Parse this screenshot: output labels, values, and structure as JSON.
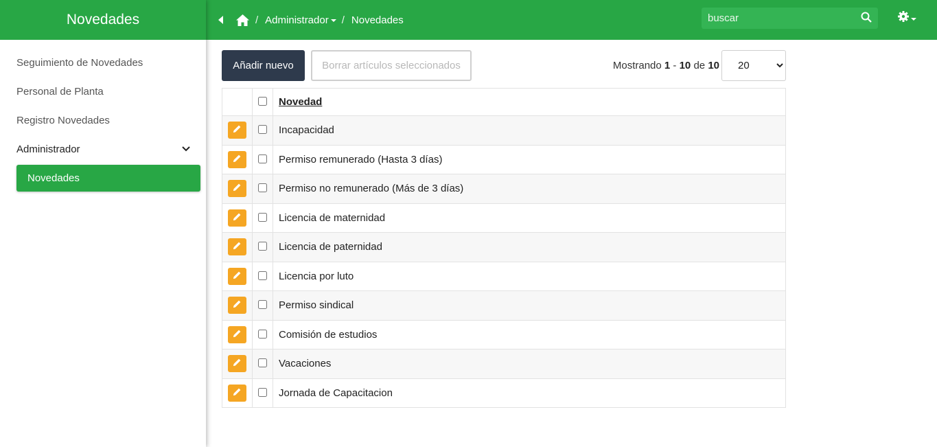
{
  "sidebar": {
    "brand": "Novedades",
    "items": [
      {
        "label": "Seguimiento de Novedades"
      },
      {
        "label": "Personal de Planta"
      },
      {
        "label": "Registro Novedades"
      }
    ],
    "section": {
      "label": "Administrador",
      "icon": "chevron-down-icon"
    },
    "active_item": {
      "label": "Novedades"
    }
  },
  "topbar": {
    "icons": [
      "back-arrow-icon",
      "home-icon",
      "search-icon",
      "gear-icon"
    ],
    "separator": "/",
    "breadcrumb": [
      {
        "label": "Administrador"
      },
      {
        "label": "Novedades"
      }
    ],
    "search": {
      "value": "",
      "placeholder": "buscar"
    }
  },
  "toolbar": {
    "add_label": "Añadir nuevo",
    "delete_label": "Borrar artículos seleccionados",
    "showing_prefix": "Mostrando",
    "showing_from": "1",
    "showing_dash": "-",
    "showing_to": "10",
    "showing_of": "de",
    "showing_total": "10",
    "page_size": "20"
  },
  "table": {
    "header": "Novedad",
    "rows": [
      "Incapacidad",
      "Permiso remunerado (Hasta 3 días)",
      "Permiso no remunerado (Más de 3 días)",
      "Licencia de maternidad",
      "Licencia de paternidad",
      "Licencia por luto",
      "Permiso sindical",
      "Comisión de estudios",
      "Vacaciones",
      "Jornada de Capacitacion"
    ]
  },
  "colors": {
    "primary_green": "#28a745",
    "dark_button": "#2e3a4c",
    "edit_orange": "#f5a623"
  }
}
